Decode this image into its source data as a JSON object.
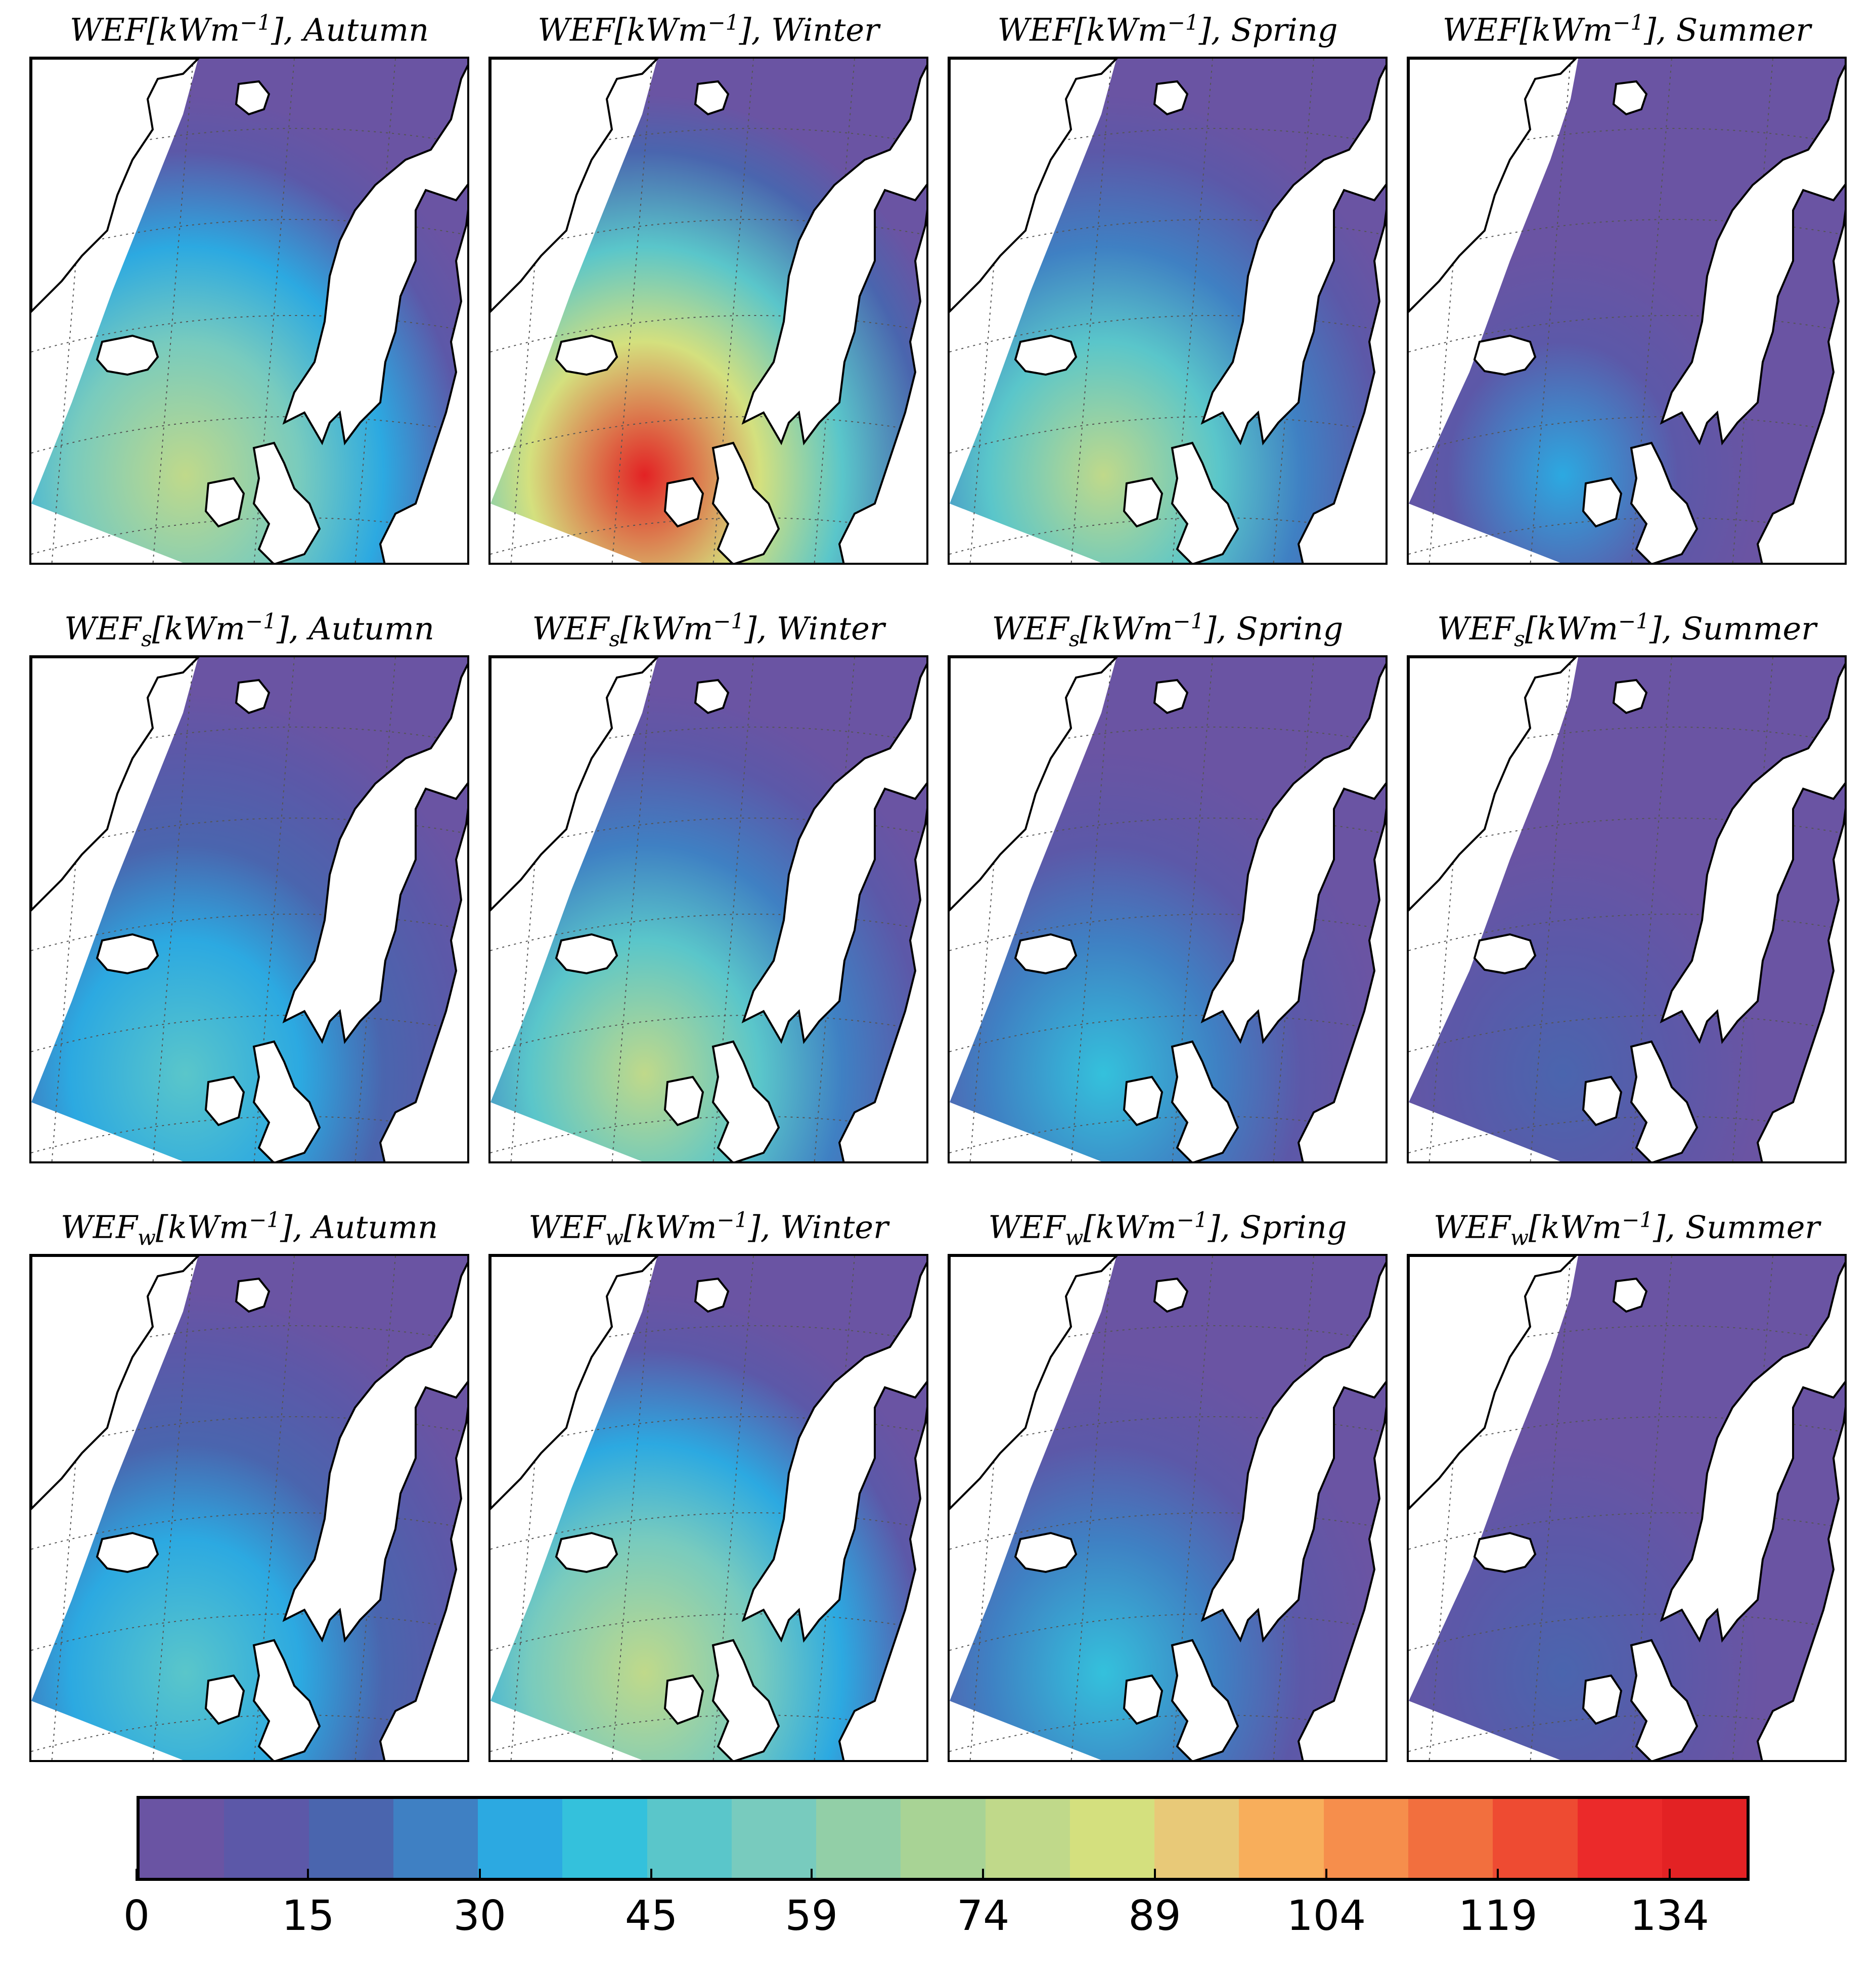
{
  "chart_data": {
    "type": "heatmap",
    "title": "",
    "units": "kWm^-1",
    "rows": [
      {
        "quantity": "WEF",
        "subscript": ""
      },
      {
        "quantity": "WEF",
        "subscript": "s"
      },
      {
        "quantity": "WEF",
        "subscript": "w"
      }
    ],
    "columns": [
      "Autumn",
      "Winter",
      "Spring",
      "Summer"
    ],
    "unit_label": "[kWm",
    "unit_exp": "−1",
    "panels": [
      {
        "label_quantity": "WEF",
        "label_sub": "",
        "season": "Autumn",
        "min": 0,
        "max": 80,
        "typical": 55
      },
      {
        "label_quantity": "WEF",
        "label_sub": "",
        "season": "Winter",
        "min": 0,
        "max": 140,
        "typical": 85
      },
      {
        "label_quantity": "WEF",
        "label_sub": "",
        "season": "Spring",
        "min": 0,
        "max": 75,
        "typical": 45
      },
      {
        "label_quantity": "WEF",
        "label_sub": "",
        "season": "Summer",
        "min": 0,
        "max": 30,
        "typical": 12
      },
      {
        "label_quantity": "WEF",
        "label_sub": "s",
        "season": "Autumn",
        "min": 0,
        "max": 45,
        "typical": 30
      },
      {
        "label_quantity": "WEF",
        "label_sub": "s",
        "season": "Winter",
        "min": 0,
        "max": 75,
        "typical": 50
      },
      {
        "label_quantity": "WEF",
        "label_sub": "s",
        "season": "Spring",
        "min": 0,
        "max": 40,
        "typical": 25
      },
      {
        "label_quantity": "WEF",
        "label_sub": "s",
        "season": "Summer",
        "min": 0,
        "max": 15,
        "typical": 8
      },
      {
        "label_quantity": "WEF",
        "label_sub": "w",
        "season": "Autumn",
        "min": 0,
        "max": 50,
        "typical": 35
      },
      {
        "label_quantity": "WEF",
        "label_sub": "w",
        "season": "Winter",
        "min": 0,
        "max": 75,
        "typical": 55
      },
      {
        "label_quantity": "WEF",
        "label_sub": "w",
        "season": "Spring",
        "min": 0,
        "max": 40,
        "typical": 25
      },
      {
        "label_quantity": "WEF",
        "label_sub": "w",
        "season": "Summer",
        "min": 0,
        "max": 15,
        "typical": 8
      }
    ],
    "colorbar": {
      "ticks": [
        "0",
        "15",
        "30",
        "45",
        "59",
        "74",
        "89",
        "104",
        "119",
        "134"
      ],
      "range": [
        0,
        141
      ],
      "levels": 19,
      "colors": [
        "#6a54a3",
        "#5c58a8",
        "#4a65ae",
        "#3f80c3",
        "#2ca9e1",
        "#34c1dc",
        "#5ac6ca",
        "#78cbbe",
        "#92cfa7",
        "#a8d395",
        "#c0d98a",
        "#d4e07e",
        "#e8c978",
        "#f8ae5b",
        "#f68e4c",
        "#f26f3e",
        "#ee4b32",
        "#eb2a2a",
        "#e32224"
      ],
      "orientation": "horizontal",
      "placement": "bottom"
    },
    "grid": true
  }
}
